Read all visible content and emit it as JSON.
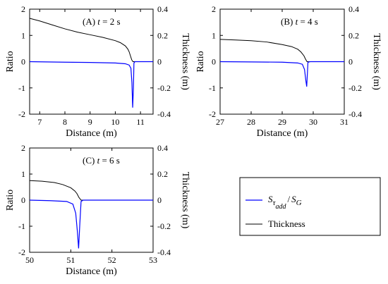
{
  "chart_data": [
    {
      "type": "line",
      "panel_label": "(A)",
      "time_text": "t = 2 s",
      "xlabel": "Distance (m)",
      "ylabel_left": "Ratio",
      "ylabel_right": "Thickness (m)",
      "xlim": [
        6.6,
        11.5
      ],
      "xticks": [
        7,
        8,
        9,
        10,
        11
      ],
      "ylim_left": [
        -2,
        2
      ],
      "yticks_left": [
        -2,
        -1,
        0,
        1,
        2
      ],
      "ylim_right": [
        -0.4,
        0.4
      ],
      "yticks_right": [
        "-0.4",
        "-0.2",
        "0",
        "0.2",
        "0.4"
      ],
      "series": [
        {
          "name": "Thickness",
          "axis": "right",
          "color": "#000000",
          "x": [
            6.6,
            7.0,
            7.5,
            8.0,
            8.5,
            9.0,
            9.5,
            10.0,
            10.2,
            10.4,
            10.5,
            10.55,
            10.6,
            10.65,
            10.7,
            10.8,
            11.5
          ],
          "y": [
            0.33,
            0.31,
            0.28,
            0.25,
            0.225,
            0.205,
            0.185,
            0.16,
            0.145,
            0.12,
            0.095,
            0.075,
            0.045,
            0.015,
            0.0,
            0.0,
            0.0
          ]
        },
        {
          "name": "S_τadd / S_G",
          "axis": "left",
          "color": "#0000ff",
          "x": [
            6.6,
            8.0,
            9.0,
            10.0,
            10.4,
            10.55,
            10.62,
            10.66,
            10.69,
            10.72,
            10.74,
            10.78,
            11.5
          ],
          "y": [
            0.0,
            -0.02,
            -0.03,
            -0.05,
            -0.08,
            -0.13,
            -0.25,
            -0.8,
            -1.75,
            -1.0,
            -0.05,
            0.0,
            0.0
          ]
        }
      ]
    },
    {
      "type": "line",
      "panel_label": "(B)",
      "time_text": "t = 4 s",
      "xlabel": "Distance (m)",
      "ylabel_left": "Ratio",
      "ylabel_right": "Thickness (m)",
      "xlim": [
        27,
        31
      ],
      "xticks": [
        27,
        28,
        29,
        30,
        31
      ],
      "ylim_left": [
        -2,
        2
      ],
      "yticks_left": [
        -2,
        -1,
        0,
        1,
        2
      ],
      "ylim_right": [
        -0.4,
        0.4
      ],
      "yticks_right": [
        "-0.4",
        "-0.2",
        "0",
        "0.2",
        "0.4"
      ],
      "series": [
        {
          "name": "Thickness",
          "axis": "right",
          "color": "#000000",
          "x": [
            27.0,
            27.5,
            28.0,
            28.5,
            29.0,
            29.3,
            29.5,
            29.6,
            29.7,
            29.75,
            29.8,
            29.9,
            31.0
          ],
          "y": [
            0.17,
            0.165,
            0.16,
            0.15,
            0.13,
            0.115,
            0.095,
            0.075,
            0.045,
            0.02,
            0.0,
            0.0,
            0.0
          ]
        },
        {
          "name": "S_τadd / S_G",
          "axis": "left",
          "color": "#0000ff",
          "x": [
            27.0,
            28.0,
            29.0,
            29.5,
            29.65,
            29.72,
            29.76,
            29.79,
            29.81,
            29.83,
            29.9,
            31.0
          ],
          "y": [
            0.0,
            -0.01,
            -0.02,
            -0.05,
            -0.1,
            -0.3,
            -0.7,
            -0.95,
            -0.5,
            -0.02,
            0.0,
            0.0
          ]
        }
      ]
    },
    {
      "type": "line",
      "panel_label": "(C)",
      "time_text": "t = 6 s",
      "xlabel": "Distance (m)",
      "ylabel_left": "Ratio",
      "ylabel_right": "Thickness (m)",
      "xlim": [
        50,
        53
      ],
      "xticks": [
        50,
        51,
        52,
        53
      ],
      "ylim_left": [
        -2,
        2
      ],
      "yticks_left": [
        -2,
        -1,
        0,
        1,
        2
      ],
      "ylim_right": [
        -0.4,
        0.4
      ],
      "yticks_right": [
        "-0.4",
        "-0.2",
        "0",
        "0.2",
        "0.4"
      ],
      "series": [
        {
          "name": "Thickness",
          "axis": "right",
          "color": "#000000",
          "x": [
            50.0,
            50.3,
            50.6,
            50.8,
            51.0,
            51.1,
            51.15,
            51.2,
            51.25,
            51.3,
            53.0
          ],
          "y": [
            0.15,
            0.145,
            0.135,
            0.12,
            0.095,
            0.07,
            0.05,
            0.02,
            0.0,
            0.0,
            0.0
          ]
        },
        {
          "name": "S_τadd / S_G",
          "axis": "left",
          "color": "#0000ff",
          "x": [
            50.0,
            50.5,
            50.9,
            51.05,
            51.12,
            51.16,
            51.19,
            51.22,
            51.25,
            51.3,
            53.0
          ],
          "y": [
            0.0,
            -0.02,
            -0.05,
            -0.15,
            -0.5,
            -1.2,
            -1.85,
            -0.9,
            -0.05,
            0.0,
            0.0
          ]
        }
      ]
    }
  ],
  "legend": {
    "placement": "bottom-right",
    "entries": [
      {
        "symbol": "S",
        "subscript": "τ",
        "subsubscript": "add",
        "slash": "/",
        "denominator": "S",
        "denominator_subscript": "G",
        "color": "#0000ff"
      },
      {
        "label": "Thickness",
        "color": "#000000"
      }
    ]
  }
}
